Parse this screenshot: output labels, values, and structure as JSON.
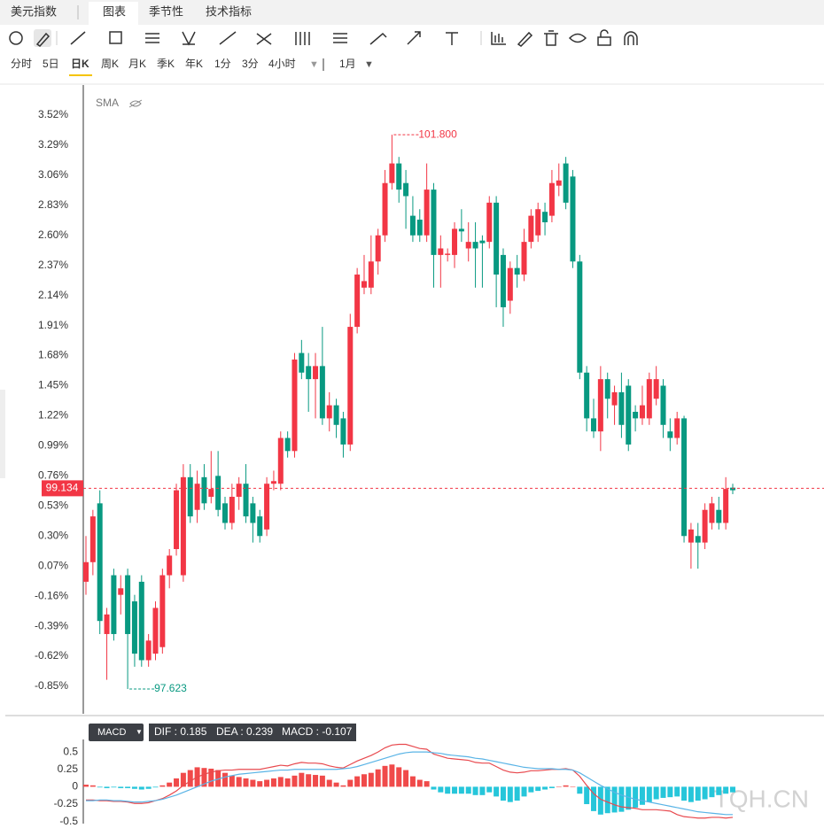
{
  "ui": {
    "symbol": "美元指数",
    "tabs": [
      "图表",
      "季节性",
      "技术指标"
    ],
    "periods": [
      "分时",
      "5日",
      "日K",
      "周K",
      "月K",
      "季K",
      "年K",
      "1分",
      "3分",
      "4小时"
    ],
    "range": "1月",
    "indicator": "SMA",
    "watermark": "TQH.CN"
  },
  "chart_data": [
    {
      "type": "candlestick",
      "ylim": [
        -1.06,
        3.75
      ],
      "grid": false,
      "up_color": "#f23645",
      "down_color": "#089981",
      "yticks": [
        {
          "value": 3.52,
          "label": "3.52%"
        },
        {
          "value": 3.29,
          "label": "3.29%"
        },
        {
          "value": 3.06,
          "label": "3.06%"
        },
        {
          "value": 2.83,
          "label": "2.83%"
        },
        {
          "value": 2.6,
          "label": "2.60%"
        },
        {
          "value": 2.37,
          "label": "2.37%"
        },
        {
          "value": 2.14,
          "label": "2.14%"
        },
        {
          "value": 1.91,
          "label": "1.91%"
        },
        {
          "value": 1.68,
          "label": "1.68%"
        },
        {
          "value": 1.45,
          "label": "1.45%"
        },
        {
          "value": 1.22,
          "label": "1.22%"
        },
        {
          "value": 0.99,
          "label": "0.99%"
        },
        {
          "value": 0.76,
          "label": "0.76%"
        },
        {
          "value": 0.53,
          "label": "0.53%"
        },
        {
          "value": 0.3,
          "label": "0.30%"
        },
        {
          "value": 0.07,
          "label": "0.07%"
        },
        {
          "value": -0.16,
          "label": "-0.16%"
        },
        {
          "value": -0.39,
          "label": "-0.39%"
        },
        {
          "value": -0.62,
          "label": "-0.62%"
        },
        {
          "value": -0.85,
          "label": "-0.85%"
        }
      ],
      "candles": [
        [
          -0.05,
          0.3,
          -0.15,
          0.1
        ],
        [
          0.1,
          0.5,
          0.0,
          0.45
        ],
        [
          0.55,
          0.65,
          -0.45,
          -0.35
        ],
        [
          -0.45,
          -0.25,
          -0.8,
          -0.3
        ],
        [
          0.0,
          0.05,
          -0.5,
          -0.45
        ],
        [
          -0.15,
          0.0,
          -0.3,
          -0.1
        ],
        [
          0.0,
          0.05,
          -0.87,
          -0.45
        ],
        [
          -0.2,
          -0.15,
          -0.7,
          -0.6
        ],
        [
          -0.05,
          0.0,
          -0.7,
          -0.65
        ],
        [
          -0.65,
          -0.45,
          -0.7,
          -0.5
        ],
        [
          -0.6,
          -0.2,
          -0.65,
          -0.25
        ],
        [
          -0.55,
          0.05,
          -0.6,
          0.0
        ],
        [
          0.0,
          0.2,
          -0.1,
          0.15
        ],
        [
          0.2,
          0.7,
          0.15,
          0.65
        ],
        [
          0.0,
          0.85,
          -0.05,
          0.75
        ],
        [
          0.75,
          0.85,
          0.4,
          0.45
        ],
        [
          0.5,
          0.8,
          0.4,
          0.7
        ],
        [
          0.75,
          0.85,
          0.5,
          0.55
        ],
        [
          0.6,
          0.95,
          0.55,
          0.66
        ],
        [
          0.76,
          0.95,
          0.45,
          0.5
        ],
        [
          0.55,
          0.6,
          0.35,
          0.4
        ],
        [
          0.4,
          0.7,
          0.35,
          0.6
        ],
        [
          0.6,
          0.75,
          0.5,
          0.7
        ],
        [
          0.7,
          0.85,
          0.4,
          0.45
        ],
        [
          0.55,
          0.6,
          0.25,
          0.4
        ],
        [
          0.45,
          0.5,
          0.25,
          0.3
        ],
        [
          0.35,
          0.75,
          0.3,
          0.7
        ],
        [
          0.7,
          0.8,
          0.65,
          0.72
        ],
        [
          0.7,
          1.1,
          0.65,
          1.05
        ],
        [
          1.05,
          1.1,
          0.9,
          0.95
        ],
        [
          0.95,
          1.7,
          0.9,
          1.65
        ],
        [
          1.7,
          1.8,
          1.5,
          1.55
        ],
        [
          1.6,
          1.7,
          1.25,
          1.5
        ],
        [
          1.5,
          1.7,
          1.2,
          1.6
        ],
        [
          1.6,
          1.9,
          1.15,
          1.2
        ],
        [
          1.2,
          1.4,
          1.1,
          1.3
        ],
        [
          1.3,
          1.35,
          1.05,
          1.15
        ],
        [
          1.2,
          1.25,
          0.9,
          1.0
        ],
        [
          1.0,
          2.0,
          0.95,
          1.9
        ],
        [
          1.9,
          2.35,
          1.85,
          2.3
        ],
        [
          2.2,
          2.45,
          2.15,
          2.25
        ],
        [
          2.2,
          2.6,
          2.15,
          2.4
        ],
        [
          2.4,
          2.65,
          2.3,
          2.6
        ],
        [
          2.6,
          3.1,
          2.55,
          3.0
        ],
        [
          3.0,
          3.37,
          2.95,
          3.15
        ],
        [
          3.15,
          3.2,
          2.85,
          2.95
        ],
        [
          3.0,
          3.1,
          2.65,
          2.9
        ],
        [
          2.75,
          2.9,
          2.55,
          2.6
        ],
        [
          2.72,
          2.8,
          2.55,
          2.6
        ],
        [
          2.6,
          3.15,
          2.55,
          2.95
        ],
        [
          2.95,
          3.0,
          2.2,
          2.45
        ],
        [
          2.45,
          2.6,
          2.2,
          2.5
        ],
        [
          2.45,
          2.5,
          2.4,
          2.46
        ],
        [
          2.45,
          2.7,
          2.35,
          2.65
        ],
        [
          2.65,
          2.8,
          2.55,
          2.63
        ],
        [
          2.5,
          2.7,
          2.4,
          2.55
        ],
        [
          2.55,
          2.7,
          2.2,
          2.5
        ],
        [
          2.56,
          2.6,
          2.2,
          2.54
        ],
        [
          2.55,
          2.9,
          2.5,
          2.85
        ],
        [
          2.85,
          2.9,
          2.05,
          2.3
        ],
        [
          2.45,
          2.5,
          1.9,
          2.05
        ],
        [
          2.1,
          2.4,
          2.0,
          2.35
        ],
        [
          2.35,
          2.45,
          2.2,
          2.3
        ],
        [
          2.3,
          2.65,
          2.25,
          2.55
        ],
        [
          2.55,
          2.8,
          2.5,
          2.75
        ],
        [
          2.6,
          2.85,
          2.55,
          2.8
        ],
        [
          2.78,
          2.85,
          2.6,
          2.7
        ],
        [
          2.75,
          3.1,
          2.7,
          3.0
        ],
        [
          2.98,
          3.15,
          2.9,
          3.02
        ],
        [
          3.15,
          3.2,
          2.8,
          2.85
        ],
        [
          3.05,
          3.1,
          2.35,
          2.4
        ],
        [
          2.4,
          2.45,
          1.5,
          1.55
        ],
        [
          1.55,
          1.6,
          1.1,
          1.2
        ],
        [
          1.2,
          1.35,
          1.05,
          1.1
        ],
        [
          1.1,
          1.6,
          0.95,
          1.5
        ],
        [
          1.5,
          1.55,
          1.2,
          1.35
        ],
        [
          1.3,
          1.45,
          1.15,
          1.4
        ],
        [
          1.4,
          1.55,
          1.05,
          1.15
        ],
        [
          1.45,
          1.5,
          0.95,
          1.0
        ],
        [
          1.25,
          1.3,
          1.1,
          1.2
        ],
        [
          1.2,
          1.45,
          1.15,
          1.3
        ],
        [
          1.2,
          1.55,
          1.15,
          1.5
        ],
        [
          1.35,
          1.6,
          1.3,
          1.5
        ],
        [
          1.45,
          1.5,
          1.05,
          1.15
        ],
        [
          1.1,
          1.2,
          0.95,
          1.05
        ],
        [
          1.05,
          1.25,
          1.0,
          1.2
        ],
        [
          1.2,
          1.22,
          0.25,
          0.3
        ],
        [
          0.25,
          0.4,
          0.05,
          0.35
        ],
        [
          0.3,
          0.4,
          0.05,
          0.25
        ],
        [
          0.25,
          0.55,
          0.2,
          0.5
        ],
        [
          0.4,
          0.6,
          0.35,
          0.55
        ],
        [
          0.5,
          0.6,
          0.35,
          0.4
        ],
        [
          0.4,
          0.75,
          0.35,
          0.66
        ],
        [
          0.67,
          0.7,
          0.62,
          0.65
        ]
      ],
      "high_marker": {
        "index": 44,
        "label": "101.800",
        "color": "#f23645"
      },
      "low_marker": {
        "index": 6,
        "label": "97.623",
        "color": "#089981"
      },
      "last_price": {
        "level": 0.665,
        "label": "99.134",
        "color": "#f23645"
      }
    },
    {
      "type": "macd",
      "name": "MACD",
      "ylim": [
        -0.53,
        0.68
      ],
      "yticks": [
        0.5,
        0.25,
        0,
        -0.25,
        -0.5
      ],
      "readout": [
        "DIF : 0.185",
        "DEA : 0.239",
        "MACD : -0.107"
      ],
      "pos_color": "#f04a4a",
      "neg_color": "#26c6da",
      "histogram": [
        0.03,
        0.02,
        -0.01,
        -0.02,
        -0.01,
        -0.02,
        -0.02,
        -0.03,
        -0.04,
        -0.03,
        -0.01,
        0.02,
        0.06,
        0.12,
        0.2,
        0.24,
        0.28,
        0.27,
        0.26,
        0.24,
        0.2,
        0.16,
        0.14,
        0.12,
        0.1,
        0.08,
        0.1,
        0.12,
        0.14,
        0.12,
        0.16,
        0.2,
        0.18,
        0.17,
        0.16,
        0.1,
        0.06,
        0.02,
        0.1,
        0.15,
        0.18,
        0.2,
        0.25,
        0.3,
        0.32,
        0.28,
        0.24,
        0.15,
        0.1,
        0.08,
        -0.04,
        -0.08,
        -0.1,
        -0.1,
        -0.1,
        -0.1,
        -0.12,
        -0.12,
        -0.08,
        -0.14,
        -0.2,
        -0.22,
        -0.2,
        -0.14,
        -0.08,
        -0.06,
        -0.04,
        -0.02,
        0.0,
        0.02,
        0.0,
        -0.1,
        -0.25,
        -0.35,
        -0.4,
        -0.38,
        -0.37,
        -0.36,
        -0.33,
        -0.3,
        -0.26,
        -0.22,
        -0.18,
        -0.16,
        -0.15,
        -0.14,
        -0.2,
        -0.22,
        -0.2,
        -0.18,
        -0.15,
        -0.12,
        -0.1,
        -0.08
      ],
      "series": [
        {
          "name": "DIF",
          "color": "#e8494e",
          "values": [
            -0.19,
            -0.19,
            -0.2,
            -0.2,
            -0.21,
            -0.21,
            -0.22,
            -0.24,
            -0.24,
            -0.23,
            -0.2,
            -0.17,
            -0.12,
            -0.06,
            0.02,
            0.08,
            0.14,
            0.18,
            0.21,
            0.23,
            0.24,
            0.24,
            0.25,
            0.25,
            0.25,
            0.25,
            0.27,
            0.29,
            0.31,
            0.3,
            0.33,
            0.35,
            0.34,
            0.34,
            0.33,
            0.3,
            0.28,
            0.27,
            0.32,
            0.37,
            0.41,
            0.45,
            0.5,
            0.56,
            0.6,
            0.61,
            0.61,
            0.58,
            0.55,
            0.54,
            0.47,
            0.44,
            0.41,
            0.4,
            0.39,
            0.38,
            0.35,
            0.34,
            0.34,
            0.29,
            0.24,
            0.21,
            0.2,
            0.21,
            0.23,
            0.23,
            0.24,
            0.25,
            0.25,
            0.26,
            0.24,
            0.15,
            0.02,
            -0.1,
            -0.18,
            -0.22,
            -0.26,
            -0.29,
            -0.3,
            -0.31,
            -0.33,
            -0.33,
            -0.33,
            -0.34,
            -0.35,
            -0.4,
            -0.43,
            -0.44,
            -0.45,
            -0.45,
            -0.44,
            -0.44,
            -0.45,
            -0.44
          ]
        },
        {
          "name": "DEA",
          "color": "#5ab4e6",
          "values": [
            -0.2,
            -0.2,
            -0.19,
            -0.19,
            -0.2,
            -0.2,
            -0.21,
            -0.22,
            -0.22,
            -0.21,
            -0.2,
            -0.18,
            -0.15,
            -0.12,
            -0.08,
            -0.04,
            0.0,
            0.04,
            0.08,
            0.11,
            0.14,
            0.16,
            0.18,
            0.19,
            0.2,
            0.21,
            0.22,
            0.23,
            0.24,
            0.24,
            0.25,
            0.25,
            0.25,
            0.25,
            0.25,
            0.25,
            0.25,
            0.26,
            0.27,
            0.29,
            0.32,
            0.35,
            0.38,
            0.41,
            0.44,
            0.47,
            0.49,
            0.5,
            0.5,
            0.5,
            0.49,
            0.48,
            0.46,
            0.45,
            0.44,
            0.43,
            0.41,
            0.4,
            0.38,
            0.36,
            0.34,
            0.32,
            0.3,
            0.28,
            0.27,
            0.26,
            0.26,
            0.26,
            0.25,
            0.25,
            0.24,
            0.2,
            0.14,
            0.08,
            0.02,
            -0.03,
            -0.08,
            -0.12,
            -0.15,
            -0.18,
            -0.2,
            -0.22,
            -0.24,
            -0.26,
            -0.28,
            -0.3,
            -0.32,
            -0.34,
            -0.36,
            -0.37,
            -0.38,
            -0.39,
            -0.4,
            -0.4
          ]
        }
      ]
    }
  ]
}
